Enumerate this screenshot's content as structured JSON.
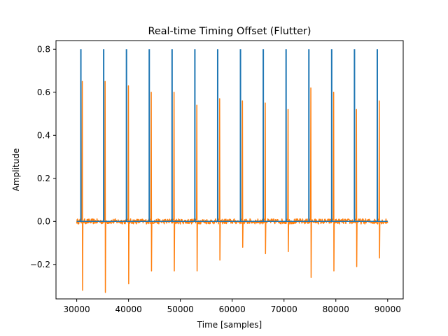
{
  "chart_data": {
    "type": "line",
    "title": "Real-time Timing Offset (Flutter)",
    "xlabel": "Time [samples]",
    "ylabel": "Amplitude",
    "xlim": [
      26000,
      93000
    ],
    "ylim": [
      -0.36,
      0.84
    ],
    "x_ticks": [
      30000,
      40000,
      50000,
      60000,
      70000,
      80000,
      90000
    ],
    "x_tick_labels": [
      "30000",
      "40000",
      "50000",
      "60000",
      "70000",
      "80000",
      "90000"
    ],
    "y_ticks": [
      -0.2,
      0.0,
      0.2,
      0.4,
      0.6,
      0.8
    ],
    "y_tick_labels": [
      "−0.2",
      "0.0",
      "0.2",
      "0.4",
      "0.6",
      "0.8"
    ],
    "grid": false,
    "legend": false,
    "series": [
      {
        "color": "#1f77b4",
        "style": "reference impulses",
        "x_range": [
          30000,
          90000
        ],
        "pulse_height": 0.8,
        "pulses": [
          30800,
          35200,
          39600,
          44000,
          48400,
          52800,
          57200,
          61600,
          66000,
          70400,
          74800,
          79200,
          83600,
          88000
        ]
      },
      {
        "color": "#ff7f0e",
        "style": "received signal with noise",
        "x_range": [
          30000,
          90000
        ],
        "noise_amplitude": 0.012,
        "pulses": [
          {
            "x": 31100,
            "peak": 0.65,
            "trough": -0.32
          },
          {
            "x": 35500,
            "peak": 0.65,
            "trough": -0.33
          },
          {
            "x": 40000,
            "peak": 0.63,
            "trough": -0.29
          },
          {
            "x": 44400,
            "peak": 0.6,
            "trough": -0.23
          },
          {
            "x": 48800,
            "peak": 0.6,
            "trough": -0.23
          },
          {
            "x": 53200,
            "peak": 0.54,
            "trough": -0.23
          },
          {
            "x": 57600,
            "peak": 0.57,
            "trough": -0.18
          },
          {
            "x": 62000,
            "peak": 0.56,
            "trough": -0.12
          },
          {
            "x": 66400,
            "peak": 0.55,
            "trough": -0.15
          },
          {
            "x": 70800,
            "peak": 0.52,
            "trough": -0.14
          },
          {
            "x": 75200,
            "peak": 0.62,
            "trough": -0.26
          },
          {
            "x": 79600,
            "peak": 0.6,
            "trough": -0.23
          },
          {
            "x": 84000,
            "peak": 0.52,
            "trough": -0.21
          },
          {
            "x": 88400,
            "peak": 0.56,
            "trough": -0.17
          }
        ]
      }
    ]
  }
}
